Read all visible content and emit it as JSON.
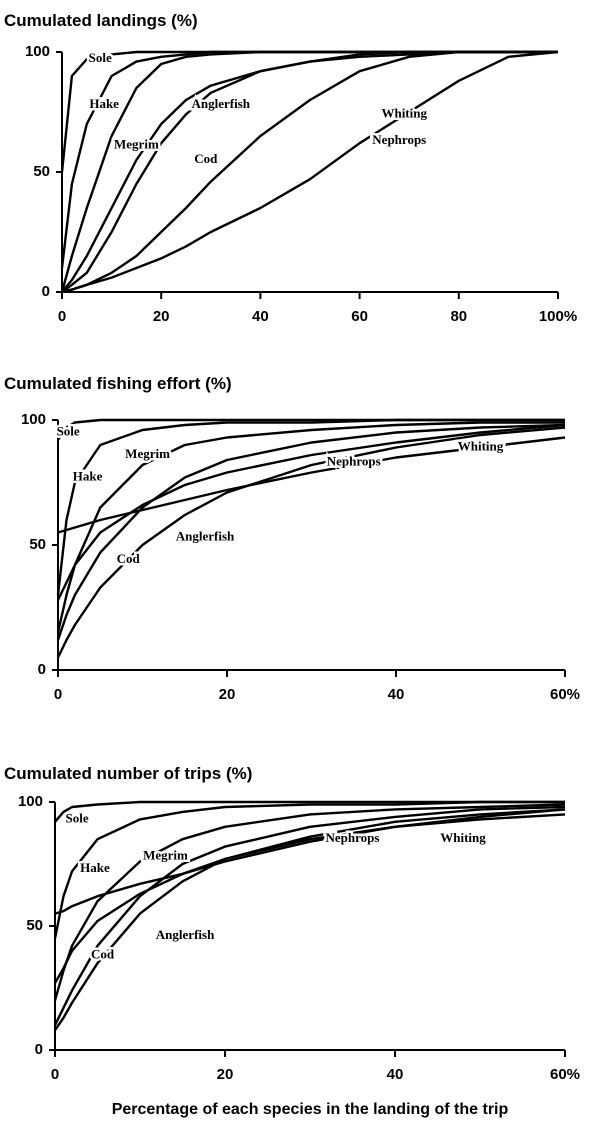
{
  "chart_data": [
    {
      "type": "line",
      "title": "Cumulated landings (%)",
      "x": [
        0,
        2,
        5,
        10,
        15,
        20,
        25,
        30,
        40,
        50,
        60,
        70,
        80,
        90,
        100
      ],
      "series": [
        {
          "name": "Sole",
          "color": "#000000",
          "values": [
            50,
            90,
            97,
            99,
            100,
            100,
            100,
            100,
            100,
            100,
            100,
            100,
            100,
            100,
            100
          ]
        },
        {
          "name": "Hake",
          "color": "#000000",
          "values": [
            10,
            45,
            70,
            90,
            96,
            98,
            99,
            100,
            100,
            100,
            100,
            100,
            100,
            100,
            100
          ]
        },
        {
          "name": "Megrim",
          "color": "#000000",
          "values": [
            0,
            15,
            35,
            65,
            85,
            95,
            98,
            99,
            100,
            100,
            100,
            100,
            100,
            100,
            100
          ]
        },
        {
          "name": "Anglerfish",
          "color": "#000000",
          "values": [
            0,
            5,
            15,
            35,
            55,
            70,
            80,
            86,
            92,
            96,
            99,
            100,
            100,
            100,
            100
          ]
        },
        {
          "name": "Cod",
          "color": "#000000",
          "values": [
            0,
            3,
            8,
            25,
            45,
            62,
            74,
            83,
            92,
            96,
            98,
            99,
            100,
            100,
            100
          ]
        },
        {
          "name": "Nephrops",
          "color": "#000000",
          "values": [
            0,
            1,
            3,
            8,
            15,
            25,
            35,
            46,
            65,
            80,
            92,
            98,
            100,
            100,
            100
          ]
        },
        {
          "name": "Whiting",
          "color": "#000000",
          "values": [
            0,
            1,
            3,
            6,
            10,
            14,
            19,
            25,
            35,
            47,
            62,
            75,
            88,
            98,
            100
          ]
        }
      ],
      "xlim": [
        0,
        100
      ],
      "xticks": [
        0,
        20,
        40,
        60,
        80,
        {
          "value": 100,
          "label": "100%"
        }
      ],
      "ylim": [
        0,
        100
      ],
      "yticks": [
        0,
        50,
        100
      ]
    },
    {
      "type": "line",
      "title": "Cumulated fishing effort (%)",
      "x": [
        0,
        1,
        2,
        5,
        10,
        15,
        20,
        30,
        40,
        50,
        60
      ],
      "series": [
        {
          "name": "Sole",
          "color": "#000000",
          "values": [
            92,
            97,
            99,
            100,
            100,
            100,
            100,
            100,
            100,
            100,
            100
          ]
        },
        {
          "name": "Hake",
          "color": "#000000",
          "values": [
            30,
            60,
            75,
            90,
            96,
            98,
            99,
            99,
            100,
            100,
            100
          ]
        },
        {
          "name": "Megrim",
          "color": "#000000",
          "values": [
            15,
            30,
            42,
            65,
            82,
            90,
            93,
            96,
            98,
            99,
            99
          ]
        },
        {
          "name": "Anglerfish",
          "color": "#000000",
          "values": [
            5,
            12,
            18,
            33,
            50,
            62,
            71,
            82,
            89,
            94,
            97
          ]
        },
        {
          "name": "Cod",
          "color": "#000000",
          "values": [
            12,
            22,
            30,
            47,
            65,
            77,
            84,
            91,
            95,
            97,
            98
          ]
        },
        {
          "name": "Nephrops",
          "color": "#000000",
          "values": [
            55,
            56,
            57,
            60,
            64,
            68,
            72,
            79,
            85,
            89,
            93
          ]
        },
        {
          "name": "Whiting",
          "color": "#000000",
          "values": [
            28,
            35,
            42,
            55,
            66,
            74,
            79,
            86,
            91,
            95,
            98
          ]
        }
      ],
      "xlim": [
        0,
        60
      ],
      "xticks": [
        0,
        20,
        40,
        {
          "value": 60,
          "label": "60%"
        }
      ],
      "ylim": [
        0,
        100
      ],
      "yticks": [
        0,
        50,
        100
      ]
    },
    {
      "type": "line",
      "title": "Cumulated number of trips (%)",
      "xlabel": "Percentage of each species in the landing of the trip",
      "x": [
        0,
        1,
        2,
        5,
        10,
        15,
        20,
        30,
        40,
        50,
        60
      ],
      "series": [
        {
          "name": "Sole",
          "color": "#000000",
          "values": [
            92,
            96,
            98,
            99,
            100,
            100,
            100,
            100,
            100,
            100,
            100
          ]
        },
        {
          "name": "Hake",
          "color": "#000000",
          "values": [
            45,
            62,
            72,
            85,
            93,
            96,
            98,
            99,
            99,
            100,
            100
          ]
        },
        {
          "name": "Megrim",
          "color": "#000000",
          "values": [
            20,
            32,
            42,
            60,
            76,
            85,
            90,
            95,
            97,
            98,
            99
          ]
        },
        {
          "name": "Anglerfish",
          "color": "#000000",
          "values": [
            8,
            13,
            19,
            35,
            55,
            68,
            77,
            86,
            92,
            95,
            97
          ]
        },
        {
          "name": "Cod",
          "color": "#000000",
          "values": [
            10,
            17,
            24,
            42,
            62,
            75,
            82,
            90,
            94,
            97,
            98
          ]
        },
        {
          "name": "Nephrops",
          "color": "#000000",
          "values": [
            55,
            56,
            58,
            62,
            67,
            71,
            76,
            84,
            90,
            94,
            97
          ]
        },
        {
          "name": "Whiting",
          "color": "#000000",
          "values": [
            27,
            33,
            40,
            52,
            63,
            71,
            77,
            85,
            90,
            93,
            95
          ]
        }
      ],
      "xlim": [
        0,
        60
      ],
      "xticks": [
        0,
        20,
        40,
        {
          "value": 60,
          "label": "60%"
        }
      ],
      "ylim": [
        0,
        100
      ],
      "yticks": [
        0,
        50,
        100
      ]
    }
  ]
}
